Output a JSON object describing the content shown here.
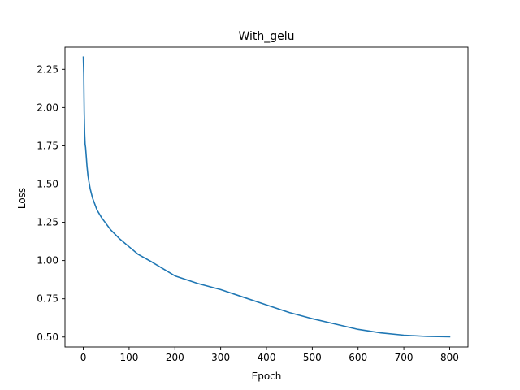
{
  "chart_data": {
    "type": "line",
    "title": "With_gelu",
    "xlabel": "Epoch",
    "ylabel": "Loss",
    "xlim": [
      -40,
      840
    ],
    "ylim": [
      0.435,
      2.395
    ],
    "xticks": [
      0,
      100,
      200,
      300,
      400,
      500,
      600,
      700,
      800
    ],
    "xtick_labels": [
      "0",
      "100",
      "200",
      "300",
      "400",
      "500",
      "600",
      "700",
      "800"
    ],
    "yticks": [
      0.5,
      0.75,
      1.0,
      1.25,
      1.5,
      1.75,
      2.0,
      2.25
    ],
    "ytick_labels": [
      "0.50",
      "0.75",
      "1.00",
      "1.25",
      "1.50",
      "1.75",
      "2.00",
      "2.25"
    ],
    "grid": false,
    "line_color": "#1f77b4",
    "series": [
      {
        "x": [
          0,
          1,
          2,
          3,
          4,
          5,
          6,
          8,
          10,
          12,
          15,
          20,
          25,
          30,
          40,
          50,
          60,
          80,
          100,
          120,
          150,
          200,
          250,
          300,
          350,
          400,
          450,
          500,
          550,
          600,
          650,
          700,
          750,
          800
        ],
        "y": [
          2.33,
          2.22,
          1.97,
          1.83,
          1.76,
          1.74,
          1.7,
          1.62,
          1.56,
          1.52,
          1.47,
          1.41,
          1.37,
          1.33,
          1.28,
          1.24,
          1.2,
          1.14,
          1.09,
          1.04,
          0.99,
          0.9,
          0.85,
          0.81,
          0.76,
          0.71,
          0.66,
          0.62,
          0.585,
          0.55,
          0.527,
          0.512,
          0.504,
          0.502
        ]
      }
    ]
  }
}
